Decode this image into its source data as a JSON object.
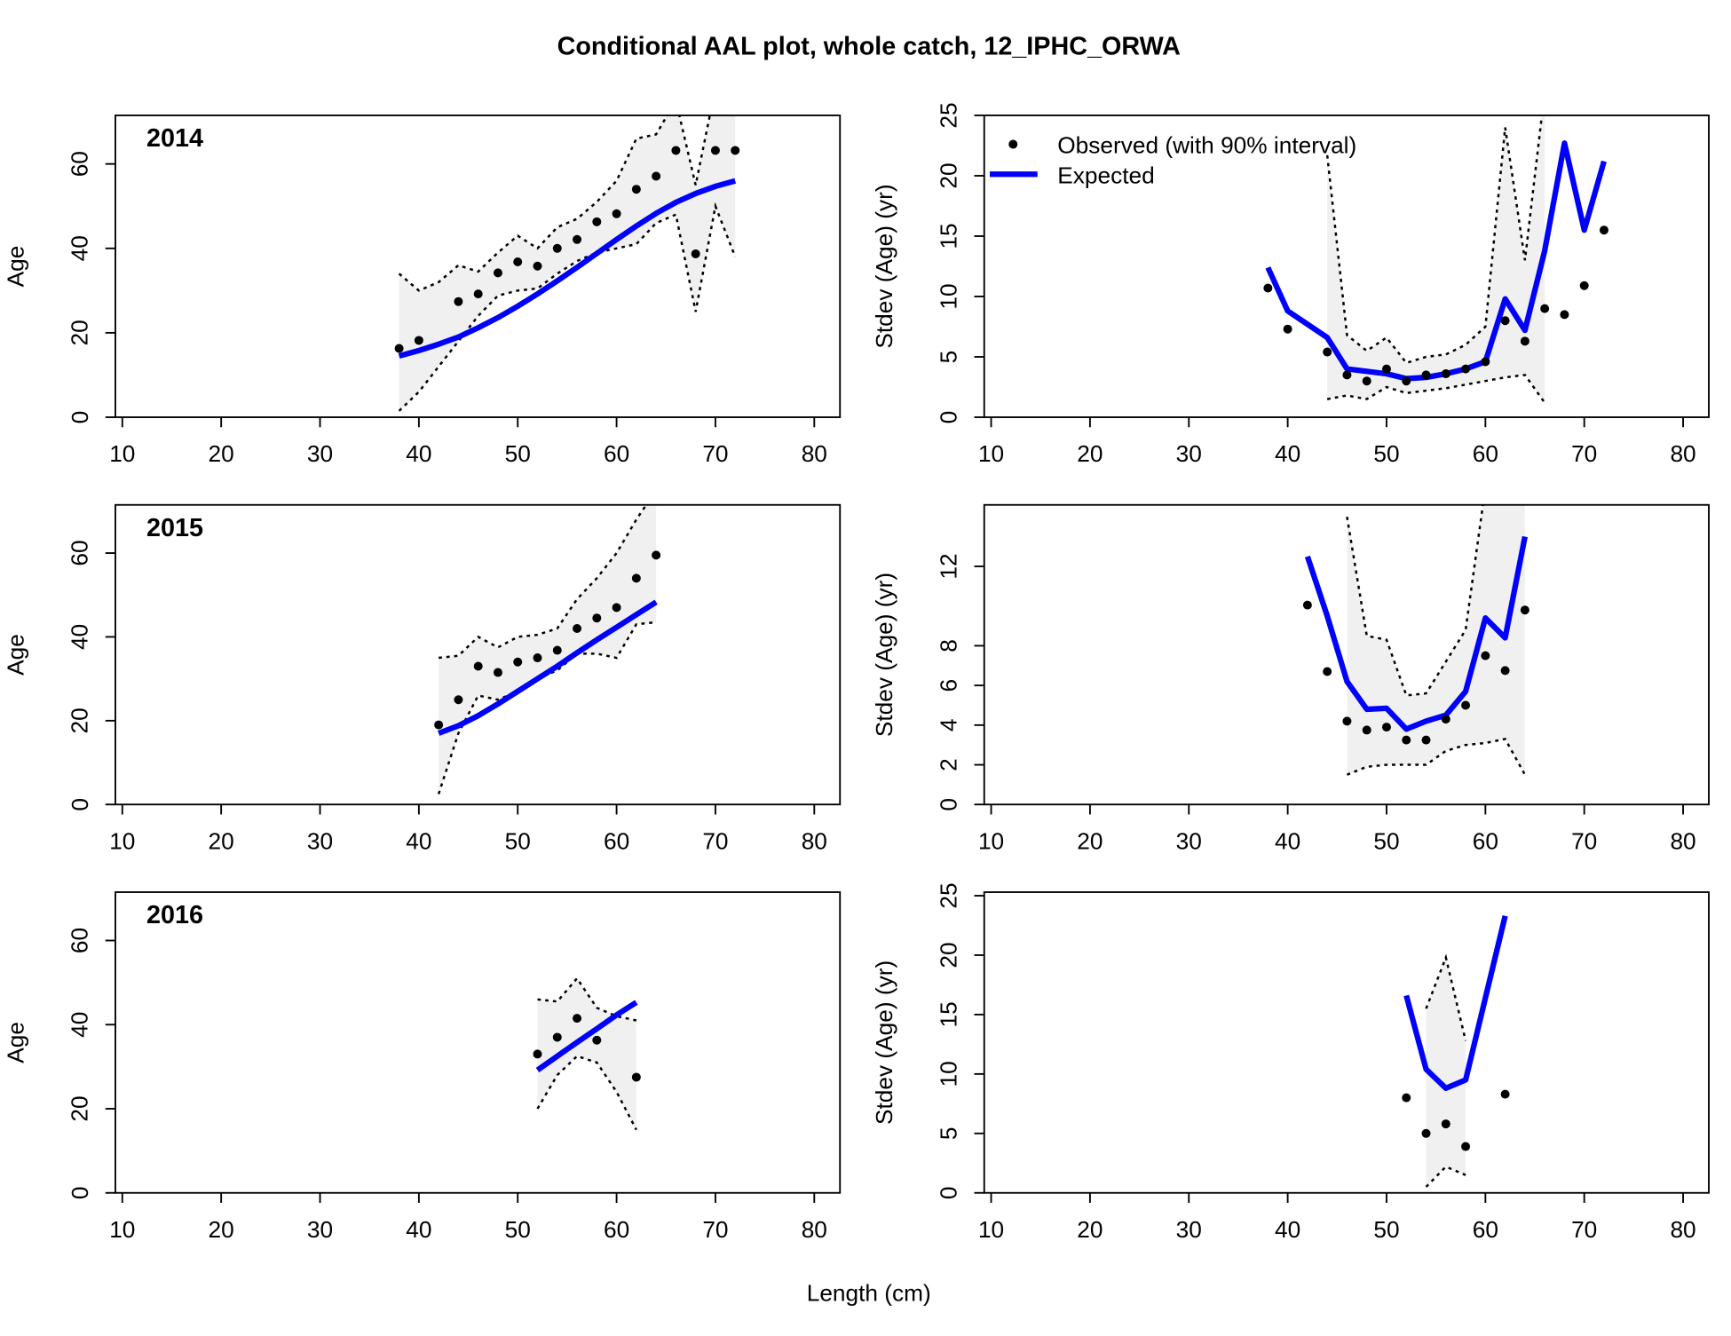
{
  "title": "Conditional AAL plot, whole catch, 12_IPHC_ORWA",
  "xlabel": "Length (cm)",
  "colors": {
    "observed": "#000000",
    "expected": "#0000ff",
    "band": "#f0f0f0",
    "interval": "#000000"
  },
  "chart_data": [
    {
      "type": "line",
      "year": "2014",
      "ylabel": "Age",
      "x": [
        38,
        40,
        42,
        44,
        46,
        48,
        50,
        52,
        54,
        56,
        58,
        60,
        62,
        64,
        66,
        68,
        70,
        72
      ],
      "observed": [
        16.3,
        18.2,
        null,
        27.4,
        29.2,
        34.2,
        36.8,
        35.8,
        40,
        42.1,
        46.3,
        48.2,
        54,
        57.1,
        63.2,
        38.7,
        63.2,
        63.2
      ],
      "expected": [
        14.5,
        15.8,
        17.3,
        19,
        21.2,
        23.6,
        26.3,
        29.2,
        32.3,
        35.5,
        38.8,
        42.1,
        45.3,
        48.3,
        50.9,
        53,
        54.7,
        56
      ],
      "lower": [
        1.5,
        6,
        12,
        18,
        24,
        28.8,
        30,
        30.5,
        34,
        37,
        39,
        40,
        41,
        46,
        48,
        25,
        50,
        38
      ],
      "upper": [
        34,
        30,
        32,
        36,
        34.5,
        39,
        43,
        40,
        45,
        47,
        51,
        56,
        66,
        67,
        75,
        55,
        78,
        75
      ],
      "xlim": [
        9.3,
        82.6
      ],
      "xticks": [
        10,
        20,
        30,
        40,
        50,
        60,
        70,
        80
      ],
      "ylim": [
        0,
        71.5
      ],
      "yticks": [
        0,
        20,
        40,
        60
      ]
    },
    {
      "type": "line",
      "ylabel": "Stdev (Age) (yr)",
      "legend": {
        "observed": "Observed (with 90% interval)",
        "expected": "Expected"
      },
      "x": [
        38,
        40,
        42,
        44,
        46,
        48,
        50,
        52,
        54,
        56,
        58,
        60,
        62,
        64,
        66,
        68,
        70,
        72
      ],
      "observed": [
        10.7,
        7.3,
        null,
        5.4,
        3.5,
        3,
        4,
        3,
        3.5,
        3.6,
        4,
        4.6,
        8,
        6.3,
        9,
        8.5,
        10.9,
        15.5
      ],
      "expected": [
        12.4,
        8.8,
        7.7,
        6.6,
        4,
        3.8,
        3.6,
        3.2,
        3.3,
        3.6,
        4,
        4.6,
        9.8,
        7.2,
        13.8,
        22.7,
        15.5,
        21.2
      ],
      "lower": [
        null,
        null,
        null,
        1.5,
        1.8,
        1.5,
        2.5,
        2,
        2.2,
        2.4,
        2.7,
        3,
        3.3,
        3.5,
        1.2,
        null,
        null,
        null
      ],
      "upper": [
        null,
        null,
        null,
        21.7,
        6.8,
        5.5,
        6.6,
        4.5,
        5,
        5.2,
        6,
        7.5,
        24,
        13,
        27,
        null,
        null,
        null
      ],
      "xlim": [
        9.3,
        82.6
      ],
      "xticks": [
        10,
        20,
        30,
        40,
        50,
        60,
        70,
        80
      ],
      "ylim": [
        0,
        25
      ],
      "yticks": [
        0,
        5,
        10,
        15,
        20,
        25
      ]
    },
    {
      "type": "line",
      "year": "2015",
      "ylabel": "Age",
      "x": [
        42,
        44,
        46,
        48,
        50,
        52,
        54,
        56,
        58,
        60,
        62,
        64
      ],
      "observed": [
        19,
        25,
        33,
        31.5,
        34,
        35,
        36.8,
        42,
        44.5,
        47,
        54,
        59.5
      ],
      "expected": [
        17,
        18.8,
        21.2,
        24,
        27,
        30,
        33,
        36.2,
        39.3,
        42.3,
        45.3,
        48.3
      ],
      "lower": [
        2.5,
        17,
        26,
        25,
        27,
        30,
        32,
        36,
        36,
        35,
        43,
        43.5
      ],
      "upper": [
        35,
        35.5,
        40,
        37.5,
        40,
        40.5,
        42,
        49,
        54,
        60,
        68,
        75
      ],
      "xlim": [
        9.3,
        82.6
      ],
      "xticks": [
        10,
        20,
        30,
        40,
        50,
        60,
        70,
        80
      ],
      "ylim": [
        0,
        71.5
      ],
      "yticks": [
        0,
        20,
        40,
        60
      ]
    },
    {
      "type": "line",
      "ylabel": "Stdev (Age) (yr)",
      "x": [
        42,
        44,
        46,
        48,
        50,
        52,
        54,
        56,
        58,
        60,
        62,
        64
      ],
      "observed": [
        10.05,
        6.7,
        4.2,
        3.75,
        3.9,
        3.25,
        3.25,
        4.3,
        5,
        7.5,
        6.75,
        9.8
      ],
      "expected": [
        12.5,
        9.5,
        6.2,
        4.8,
        4.85,
        3.8,
        4.2,
        4.5,
        5.7,
        9.4,
        8.4,
        13.5
      ],
      "lower": [
        null,
        null,
        1.5,
        1.9,
        2,
        2,
        2,
        2.7,
        3,
        3.1,
        3.3,
        1.5
      ],
      "upper": [
        null,
        null,
        14.5,
        8.5,
        8.3,
        5.5,
        5.6,
        7.2,
        8.8,
        16,
        20,
        20
      ],
      "xlim": [
        9.3,
        82.6
      ],
      "xticks": [
        10,
        20,
        30,
        40,
        50,
        60,
        70,
        80
      ],
      "ylim": [
        0,
        15.1
      ],
      "yticks": [
        0,
        2,
        4,
        6,
        8,
        12
      ]
    },
    {
      "type": "line",
      "year": "2016",
      "ylabel": "Age",
      "x": [
        52,
        54,
        56,
        58,
        60,
        62
      ],
      "observed": [
        33,
        37,
        41.5,
        36.3,
        null,
        27.5
      ],
      "expected": [
        29.2,
        32.5,
        35.8,
        39,
        42.3,
        45.3
      ],
      "lower": [
        20,
        28,
        32.5,
        31,
        24,
        15
      ],
      "upper": [
        46,
        45.5,
        51,
        44,
        42,
        41
      ],
      "xlim": [
        9.3,
        82.6
      ],
      "xticks": [
        10,
        20,
        30,
        40,
        50,
        60,
        70,
        80
      ],
      "ylim": [
        0,
        71.5
      ],
      "yticks": [
        0,
        20,
        40,
        60
      ]
    },
    {
      "type": "line",
      "ylabel": "Stdev (Age) (yr)",
      "x": [
        52,
        54,
        56,
        58,
        60,
        62
      ],
      "observed": [
        8,
        5,
        5.8,
        3.9,
        null,
        8.3
      ],
      "expected": [
        16.6,
        10.4,
        8.8,
        9.5,
        16.4,
        23.3
      ],
      "lower": [
        null,
        0.5,
        2.2,
        1.5,
        null,
        null
      ],
      "upper": [
        null,
        15.5,
        19.8,
        12.8,
        null,
        null
      ],
      "xlim": [
        9.3,
        82.6
      ],
      "xticks": [
        10,
        20,
        30,
        40,
        50,
        60,
        70,
        80
      ],
      "ylim": [
        0,
        25.3
      ],
      "yticks": [
        0,
        5,
        10,
        15,
        20,
        25
      ]
    }
  ]
}
